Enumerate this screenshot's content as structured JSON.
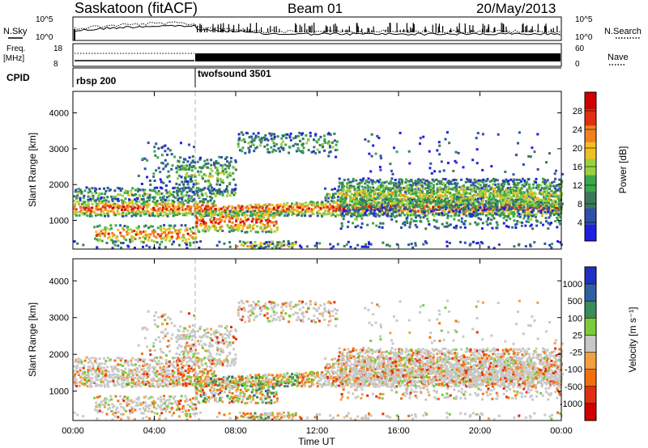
{
  "header": {
    "site": "Saskatoon (fitACF)",
    "beam": "Beam 01",
    "date": "20/May/2013"
  },
  "top_panels": {
    "nsky_label": "N.Sky",
    "nsearch_label": "N.Search",
    "freq_label_line1": "Freq.",
    "freq_label_line2": "[MHz]",
    "nave_label": "Nave",
    "cpid_label": "CPID",
    "noise_ticks_left": [
      "10^5",
      "10^0"
    ],
    "noise_ticks_right": [
      "10^5",
      "10^0"
    ],
    "freq_ticks": [
      "18",
      "8"
    ],
    "nave_ticks": [
      "60",
      "0"
    ],
    "cpid_segments": [
      {
        "name": "rbsp 200",
        "start_hour": 0
      },
      {
        "name": "twofsound 3501",
        "start_hour": 6
      }
    ]
  },
  "chart_data": [
    {
      "type": "heatmap",
      "title": "",
      "xlabel": "Time UT",
      "ylabel": "Slant Range [km]",
      "xlim": [
        0,
        24
      ],
      "ylim": [
        200,
        4600
      ],
      "x_ticks": [
        "00:00",
        "04:00",
        "08:00",
        "12:00",
        "16:00",
        "20:00",
        "00:00"
      ],
      "y_ticks": [
        1000,
        2000,
        3000,
        4000
      ],
      "colorbar": {
        "label": "Power [dB]",
        "ticks": [
          4,
          8,
          12,
          16,
          20,
          24,
          28
        ],
        "range": [
          0,
          32
        ],
        "colors": [
          "#1f1fe0",
          "#2f4fa8",
          "#3a7a5a",
          "#3aa84a",
          "#9ad040",
          "#f0c020",
          "#f08020",
          "#e03010",
          "#d00000"
        ]
      }
    },
    {
      "type": "heatmap",
      "title": "",
      "xlabel": "Time UT",
      "ylabel": "Slant Range [km]",
      "xlim": [
        0,
        24
      ],
      "ylim": [
        200,
        4600
      ],
      "x_ticks": [
        "00:00",
        "04:00",
        "08:00",
        "12:00",
        "16:00",
        "20:00",
        "00:00"
      ],
      "y_ticks": [
        1000,
        2000,
        3000,
        4000
      ],
      "colorbar": {
        "label": "Velocity [m s⁻¹]",
        "ticks": [
          "1000",
          "500",
          "100",
          "25",
          "-25",
          "-100",
          "-500",
          "-1000"
        ],
        "colors": [
          "#2030c0",
          "#2f60a0",
          "#3a8a5a",
          "#7acc3a",
          "#c8c8c8",
          "#f0a040",
          "#f07010",
          "#e03010",
          "#d00000"
        ]
      }
    }
  ],
  "colors": {
    "ground_scatter": "#c0c0c0",
    "axis": "#000000",
    "divider": "#b0b0b0"
  }
}
